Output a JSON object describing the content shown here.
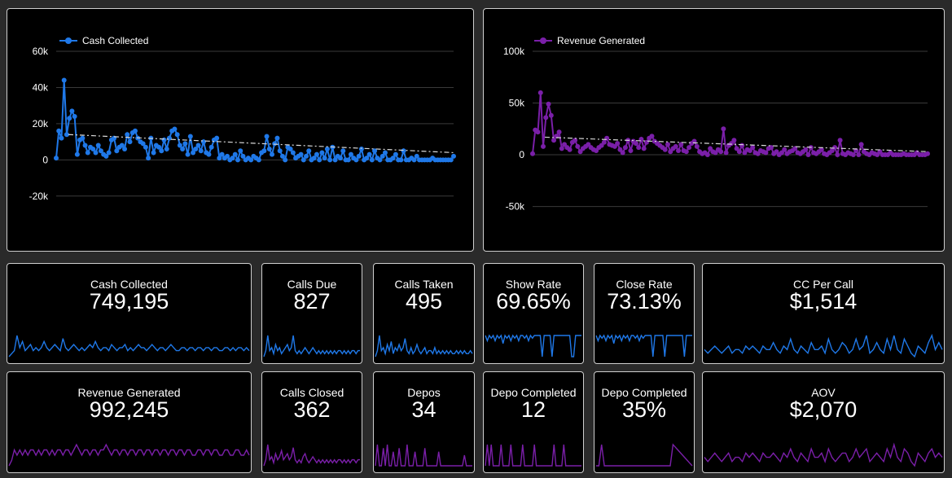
{
  "colors": {
    "blue": "#1f78e8",
    "purple": "#7a1fa8",
    "grid": "#3a3a3a",
    "trend": "#d8d8d8"
  },
  "charts": [
    {
      "legend": "Cash Collected",
      "color": "#1f78e8",
      "y_ticks": [
        "60k",
        "40k",
        "20k",
        "0",
        "-20k"
      ],
      "chart_data": {
        "type": "line",
        "series": [
          {
            "name": "Cash Collected",
            "values": [
              1000,
              16000,
              12000,
              44000,
              14000,
              23000,
              27000,
              24000,
              3000,
              11000,
              12000,
              8000,
              4000,
              7000,
              6000,
              4000,
              8000,
              5000,
              3000,
              2000,
              4000,
              11000,
              12000,
              5000,
              7000,
              8000,
              6000,
              14000,
              10000,
              15000,
              16000,
              12000,
              10000,
              9000,
              7000,
              1000,
              12000,
              4000,
              8000,
              7000,
              5000,
              11000,
              6000,
              12000,
              16000,
              17000,
              14000,
              8000,
              6000,
              9000,
              3000,
              13000,
              4000,
              6000,
              8000,
              5000,
              10000,
              4000,
              3000,
              7000,
              11000,
              12000,
              1000,
              3000,
              1000,
              2000,
              0,
              1000,
              3000,
              0,
              5000,
              2000,
              0,
              1000,
              0,
              2000,
              1000,
              0,
              4000,
              5000,
              13000,
              6000,
              3000,
              9000,
              12000,
              5000,
              2000,
              0,
              7000,
              6000,
              4000,
              1000,
              2000,
              3000,
              0,
              2000,
              5000,
              0,
              1000,
              3000,
              0,
              4000,
              1000,
              6000,
              0,
              7000,
              0,
              2000,
              1000,
              5000,
              0,
              0,
              3000,
              1000,
              0,
              2000,
              6000,
              0,
              1000,
              3000,
              0,
              5000,
              1000,
              0,
              2000,
              4000,
              0,
              0,
              1000,
              3000,
              0,
              0,
              5000,
              0,
              0,
              1000,
              0,
              2000,
              0,
              0,
              0,
              0,
              0,
              1000,
              0,
              0,
              0,
              0,
              0,
              0,
              0,
              2000
            ]
          }
        ],
        "ylim": [
          -30000,
          60000
        ],
        "trend": [
          14000,
          4000
        ]
      }
    },
    {
      "legend": "Revenue Generated",
      "color": "#7a1fa8",
      "y_ticks": [
        "100k",
        "50k",
        "0",
        "-50k"
      ],
      "chart_data": {
        "type": "line",
        "series": [
          {
            "name": "Revenue Generated",
            "values": [
              1000,
              24000,
              22000,
              60000,
              8000,
              36000,
              49000,
              38000,
              14000,
              18000,
              22000,
              6000,
              10000,
              7000,
              5000,
              12000,
              14000,
              8000,
              3000,
              6000,
              8000,
              10000,
              7000,
              5000,
              4000,
              7000,
              9000,
              12000,
              16000,
              10000,
              9000,
              8000,
              11000,
              5000,
              2000,
              7000,
              14000,
              4000,
              13000,
              11000,
              7000,
              15000,
              6000,
              12000,
              16000,
              18000,
              13000,
              11000,
              9000,
              7000,
              5000,
              10000,
              3000,
              6000,
              8000,
              4000,
              10000,
              4000,
              3000,
              7000,
              11000,
              13000,
              8000,
              3000,
              1000,
              2000,
              0,
              6000,
              3000,
              2000,
              5000,
              3000,
              25000,
              2000,
              9000,
              11000,
              14000,
              6000,
              3000,
              9000,
              2000,
              5000,
              4000,
              7000,
              2000,
              1000,
              4000,
              3000,
              2000,
              6000,
              7000,
              1000,
              3000,
              0,
              2000,
              5000,
              1000,
              3000,
              4000,
              6000,
              2000,
              1000,
              3000,
              5000,
              0,
              7000,
              2000,
              1000,
              3000,
              5000,
              1000,
              0,
              2000,
              4000,
              7000,
              0,
              14000,
              1000,
              0,
              2000,
              1000,
              0,
              4000,
              0,
              10000,
              3000,
              1000,
              0,
              2000,
              1000,
              0,
              3000,
              0,
              0,
              0,
              2000,
              0,
              0,
              0,
              0,
              1000,
              0,
              0,
              0,
              0,
              2000,
              0,
              0,
              0,
              1000
            ]
          }
        ],
        "ylim": [
          -70000,
          100000
        ],
        "trend": [
          17000,
          3000
        ]
      }
    }
  ],
  "kpis": [
    {
      "label": "Cash Collected",
      "value": "749,195",
      "color": "#1f78e8",
      "spark": [
        9,
        8,
        7,
        2,
        6,
        4,
        7,
        6,
        5,
        7,
        6,
        7,
        6,
        4,
        6,
        7,
        6,
        5,
        6,
        7,
        3,
        6,
        7,
        6,
        5,
        6,
        7,
        6,
        7,
        6,
        5,
        6,
        4,
        6,
        7,
        6,
        6,
        7,
        5,
        6,
        7,
        6,
        6,
        5,
        7,
        6,
        7,
        6,
        5,
        6,
        6,
        7,
        6,
        5,
        6,
        7,
        6,
        6,
        7,
        6,
        5,
        6,
        7,
        7,
        6,
        6,
        7,
        6,
        6,
        7,
        6,
        6,
        7,
        6,
        6,
        7,
        6,
        6,
        7,
        7,
        6,
        6,
        7,
        6,
        7,
        6,
        6,
        7,
        6,
        7
      ]
    },
    {
      "label": "Calls Due",
      "value": "827",
      "color": "#1f78e8",
      "spark": [
        9,
        7,
        2,
        7,
        6,
        8,
        5,
        7,
        6,
        8,
        7,
        6,
        5,
        7,
        6,
        2,
        7,
        8,
        7,
        8,
        7,
        6,
        7,
        8,
        7,
        6,
        7,
        8,
        7,
        8,
        7,
        8,
        7,
        8,
        7,
        8,
        7,
        8,
        7,
        7,
        8,
        7,
        8,
        7,
        8,
        7,
        7,
        8,
        7,
        7
      ]
    },
    {
      "label": "Calls Taken",
      "value": "495",
      "color": "#1f78e8",
      "spark": [
        9,
        7,
        2,
        7,
        6,
        8,
        5,
        7,
        4,
        8,
        6,
        7,
        5,
        7,
        6,
        3,
        7,
        8,
        6,
        8,
        7,
        5,
        7,
        8,
        7,
        6,
        8,
        7,
        7,
        8,
        6,
        8,
        7,
        8,
        7,
        8,
        7,
        8,
        7,
        8,
        8,
        7,
        8,
        7,
        8,
        7,
        8,
        8,
        7,
        8
      ]
    },
    {
      "label": "Show Rate",
      "value": "69.65%",
      "color": "#1f78e8",
      "spark": [
        1,
        3,
        1,
        2,
        1,
        3,
        1,
        2,
        1,
        4,
        1,
        2,
        1,
        3,
        1,
        2,
        1,
        3,
        1,
        1,
        2,
        1,
        3,
        1,
        2,
        1,
        1,
        1,
        1,
        9,
        1,
        1,
        1,
        1,
        9,
        1,
        1,
        1,
        1,
        1,
        1,
        1,
        1,
        1,
        9,
        9,
        1,
        1,
        1,
        1
      ]
    },
    {
      "label": "Close Rate",
      "value": "73.13%",
      "color": "#1f78e8",
      "spark": [
        1,
        3,
        1,
        2,
        1,
        3,
        1,
        2,
        1,
        4,
        1,
        2,
        1,
        3,
        1,
        2,
        1,
        3,
        1,
        1,
        2,
        1,
        3,
        1,
        2,
        1,
        1,
        1,
        1,
        9,
        1,
        1,
        1,
        1,
        1,
        9,
        1,
        1,
        1,
        1,
        1,
        1,
        1,
        1,
        1,
        9,
        1,
        1,
        1,
        1
      ]
    },
    {
      "label": "CC Per Call",
      "value": "$1,514",
      "color": "#1f78e8",
      "spark": [
        6,
        7,
        6,
        5,
        6,
        7,
        6,
        5,
        7,
        6,
        6,
        7,
        5,
        6,
        5,
        6,
        7,
        5,
        6,
        6,
        4,
        6,
        7,
        5,
        6,
        3,
        6,
        7,
        5,
        6,
        7,
        4,
        6,
        6,
        5,
        7,
        3,
        6,
        7,
        6,
        4,
        5,
        7,
        6,
        3,
        6,
        5,
        2,
        7,
        6,
        4,
        6,
        7,
        3,
        6,
        2,
        6,
        7,
        3,
        5,
        7,
        8,
        5,
        6,
        7,
        4,
        2,
        6,
        4,
        6
      ]
    },
    {
      "label": "Revenue Generated",
      "value": "992,245",
      "color": "#7a1fa8",
      "spark": [
        9,
        8,
        6,
        7,
        6,
        7,
        6,
        7,
        6,
        6,
        7,
        6,
        7,
        6,
        6,
        7,
        6,
        7,
        6,
        6,
        7,
        6,
        6,
        7,
        6,
        5,
        6,
        7,
        6,
        6,
        7,
        6,
        6,
        7,
        6,
        6,
        5,
        6,
        7,
        6,
        6,
        7,
        6,
        6,
        7,
        6,
        6,
        7,
        6,
        6,
        7,
        6,
        6,
        7,
        6,
        6,
        7,
        6,
        6,
        7,
        6,
        6,
        7,
        6,
        6,
        7,
        6,
        6,
        7,
        7,
        6,
        6,
        7,
        6,
        6,
        7,
        6,
        6,
        7,
        7,
        6,
        6,
        7,
        7,
        6,
        6,
        7,
        7,
        6,
        7
      ]
    },
    {
      "label": "Calls Closed",
      "value": "362",
      "color": "#7a1fa8",
      "spark": [
        9,
        7,
        2,
        7,
        6,
        8,
        5,
        7,
        6,
        4,
        7,
        6,
        5,
        7,
        6,
        3,
        7,
        8,
        7,
        8,
        6,
        5,
        7,
        8,
        7,
        6,
        7,
        8,
        7,
        8,
        7,
        8,
        7,
        8,
        7,
        8,
        7,
        8,
        7,
        7,
        8,
        7,
        8,
        7,
        8,
        7,
        7,
        8,
        7,
        7
      ]
    },
    {
      "label": "Depos",
      "value": "34",
      "color": "#7a1fa8",
      "spark": [
        9,
        3,
        9,
        9,
        4,
        9,
        3,
        9,
        9,
        5,
        9,
        9,
        4,
        9,
        9,
        9,
        3,
        9,
        9,
        9,
        5,
        9,
        9,
        9,
        9,
        4,
        9,
        9,
        9,
        9,
        9,
        9,
        5,
        9,
        9,
        9,
        9,
        9,
        9,
        9,
        9,
        9,
        9,
        9,
        9,
        6,
        9,
        9,
        9,
        9
      ]
    },
    {
      "label": "Depo Completed",
      "value": "12",
      "color": "#7a1fa8",
      "spark": [
        9,
        2,
        9,
        2,
        9,
        9,
        9,
        9,
        2,
        9,
        9,
        9,
        9,
        2,
        9,
        9,
        9,
        9,
        9,
        2,
        9,
        9,
        9,
        9,
        9,
        2,
        9,
        9,
        9,
        9,
        9,
        9,
        9,
        9,
        9,
        2,
        9,
        9,
        9,
        9,
        2,
        9,
        9,
        9,
        9,
        9,
        9,
        9,
        9,
        9
      ]
    },
    {
      "label": "Depo Completed",
      "value": "35%",
      "color": "#7a1fa8",
      "spark": [
        9,
        9,
        2,
        9,
        9,
        9,
        9,
        9,
        9,
        9,
        9,
        9,
        9,
        9,
        9,
        9,
        9,
        9,
        9,
        9,
        9,
        9,
        9,
        9,
        9,
        9,
        9,
        9,
        2,
        3,
        4,
        5,
        6,
        7,
        8,
        9
      ]
    },
    {
      "label": "AOV",
      "value": "$2,070",
      "color": "#7a1fa8",
      "spark": [
        6,
        7,
        6,
        5,
        6,
        7,
        6,
        5,
        7,
        6,
        6,
        7,
        5,
        6,
        5,
        6,
        7,
        5,
        6,
        6,
        5,
        6,
        7,
        5,
        6,
        4,
        6,
        7,
        5,
        6,
        7,
        4,
        6,
        6,
        5,
        7,
        4,
        6,
        7,
        6,
        5,
        5,
        7,
        6,
        4,
        6,
        5,
        4,
        7,
        6,
        5,
        6,
        7,
        4,
        6,
        3,
        6,
        7,
        4,
        5,
        7,
        8,
        5,
        6,
        7,
        5,
        4,
        6,
        5,
        6
      ]
    }
  ]
}
